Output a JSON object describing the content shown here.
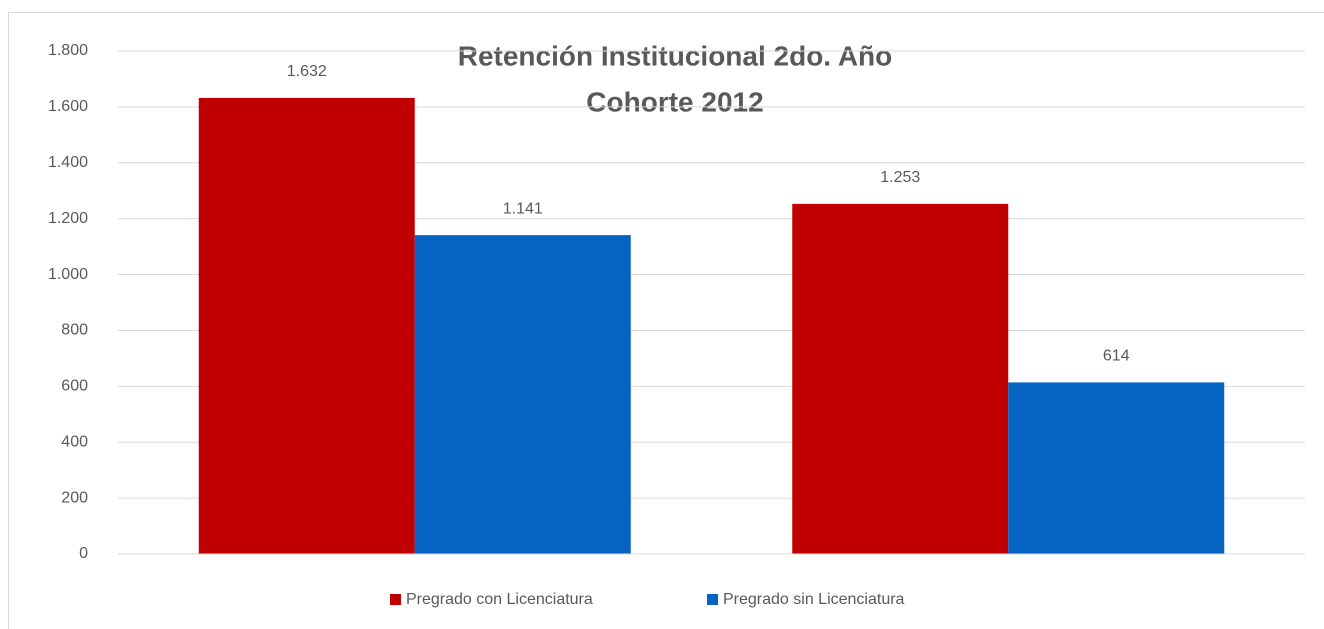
{
  "chart_data": {
    "type": "bar",
    "title": "Retención Institucional 2do. Año",
    "subtitle": "Cohorte 2012",
    "categories": [
      null,
      null
    ],
    "series": [
      {
        "name": "Pregrado con Licenciatura",
        "color": "#c00000",
        "values": [
          1632,
          1253
        ],
        "value_labels": [
          "1.632",
          "1.253"
        ]
      },
      {
        "name": "Pregrado sin Licenciatura",
        "color": "#0563c1",
        "values": [
          1141,
          614
        ],
        "value_labels": [
          "1.141",
          "614"
        ]
      }
    ],
    "ylim": [
      0,
      1800
    ],
    "yticks": [
      0,
      200,
      400,
      600,
      800,
      {
        "value": 1000,
        "label": "1.000"
      },
      {
        "value": 1200,
        "label": "1.200"
      },
      {
        "value": 1400,
        "label": "1.400"
      },
      {
        "value": 1600,
        "label": "1.600"
      },
      {
        "value": 1800,
        "label": "1.800"
      }
    ],
    "grid": true,
    "legend": "bottom"
  }
}
